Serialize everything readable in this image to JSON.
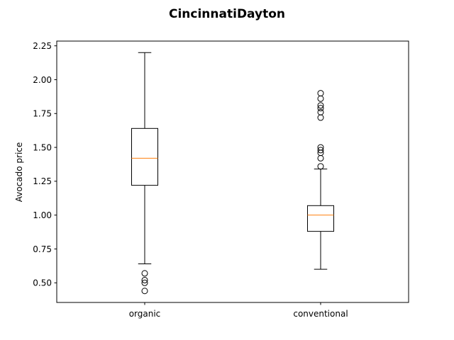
{
  "chart_data": {
    "type": "box",
    "title": "CincinnatiDayton",
    "ylabel": "Avocado price",
    "xlabel": "",
    "ylim": [
      0.355,
      2.285
    ],
    "yticks": [
      0.5,
      0.75,
      1.0,
      1.25,
      1.5,
      1.75,
      2.0,
      2.25
    ],
    "ytick_labels": [
      "0.50",
      "0.75",
      "1.00",
      "1.25",
      "1.50",
      "1.75",
      "2.00",
      "2.25"
    ],
    "categories": [
      "organic",
      "conventional"
    ],
    "boxes": [
      {
        "name": "organic",
        "whisker_low": 0.64,
        "q1": 1.22,
        "median": 1.42,
        "q3": 1.64,
        "whisker_high": 2.2,
        "outliers": [
          0.57,
          0.52,
          0.5,
          0.44
        ]
      },
      {
        "name": "conventional",
        "whisker_low": 0.6,
        "q1": 0.88,
        "median": 1.0,
        "q3": 1.07,
        "whisker_high": 1.34,
        "outliers": [
          1.9,
          1.86,
          1.81,
          1.79,
          1.76,
          1.72,
          1.5,
          1.48,
          1.46,
          1.42,
          1.36
        ]
      }
    ],
    "grid": false,
    "colors": {
      "box": "#000000",
      "median": "#ff7f0e",
      "outlier": "#000000"
    }
  }
}
